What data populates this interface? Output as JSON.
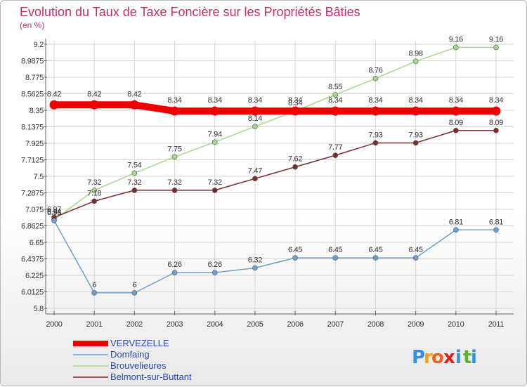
{
  "chart_data": {
    "type": "line",
    "title": "Evolution du Taux de Taxe Foncière sur les Propriétés Bâties",
    "unit_label": "(en %)",
    "xlabel": "",
    "ylabel": "(en %)",
    "ylim": [
      5.8,
      9.2
    ],
    "yticks": [
      "9.2",
      "8.9875",
      "8.775",
      "8.5625",
      "8.35",
      "8.1375",
      "7.925",
      "7.7125",
      "7.5",
      "7.2875",
      "7.075",
      "6.8625",
      "6.65",
      "6.4375",
      "6.225",
      "6.0125",
      "5.8"
    ],
    "categories": [
      "2000",
      "2001",
      "2002",
      "2003",
      "2004",
      "2005",
      "2006",
      "2007",
      "2008",
      "2009",
      "2010",
      "2011"
    ],
    "series": [
      {
        "name": "VERVEZELLE",
        "color": "#ee0000",
        "values": [
          8.42,
          8.42,
          8.42,
          8.34,
          8.34,
          8.34,
          8.34,
          8.34,
          8.34,
          8.34,
          8.34,
          8.34
        ],
        "labels": [
          "8.42",
          "8.42",
          "8.42",
          "8.34",
          "8.34",
          "8.34",
          "8.34",
          "8.34",
          "8.34",
          "8.34",
          "8.34",
          "8.34"
        ]
      },
      {
        "name": "Domfaing",
        "color": "#6f9fcf",
        "values": [
          6.93,
          6.0,
          6.0,
          6.26,
          6.26,
          6.32,
          6.45,
          6.45,
          6.45,
          6.45,
          6.81,
          6.81
        ],
        "labels": [
          "6.93",
          "6",
          "6",
          "6.26",
          "6.26",
          "6.32",
          "6.45",
          "6.45",
          "6.45",
          "6.45",
          "6.81",
          "6.81"
        ]
      },
      {
        "name": "Brouvelieures",
        "color": "#a5d98e",
        "values": [
          6.94,
          7.32,
          7.54,
          7.75,
          7.94,
          8.14,
          8.34,
          8.55,
          8.76,
          8.98,
          9.16,
          9.16
        ],
        "labels": [
          "6.94",
          "7.32",
          "7.54",
          "7.75",
          "7.94",
          "8.14",
          "8.34",
          "8.55",
          "8.76",
          "8.98",
          "9.16",
          "9.16"
        ]
      },
      {
        "name": "Belmont-sur-Buttant",
        "color": "#7a2d2d",
        "values": [
          6.97,
          7.18,
          7.32,
          7.32,
          7.32,
          7.47,
          7.62,
          7.77,
          7.93,
          7.93,
          8.09,
          8.09
        ],
        "labels": [
          "6.97",
          "7.18",
          "7.32",
          "7.32",
          "7.32",
          "7.47",
          "7.62",
          "7.77",
          "7.93",
          "7.93",
          "8.09",
          "8.09"
        ]
      }
    ]
  },
  "logo": {
    "letters": [
      "P",
      "r",
      "o",
      "x",
      "i",
      "t",
      "i"
    ],
    "colors": [
      "#3a8fd9",
      "#f0a020",
      "#f06020",
      "#e02020",
      "#3a8fd9",
      "#60b030",
      "#3a8fd9"
    ]
  }
}
